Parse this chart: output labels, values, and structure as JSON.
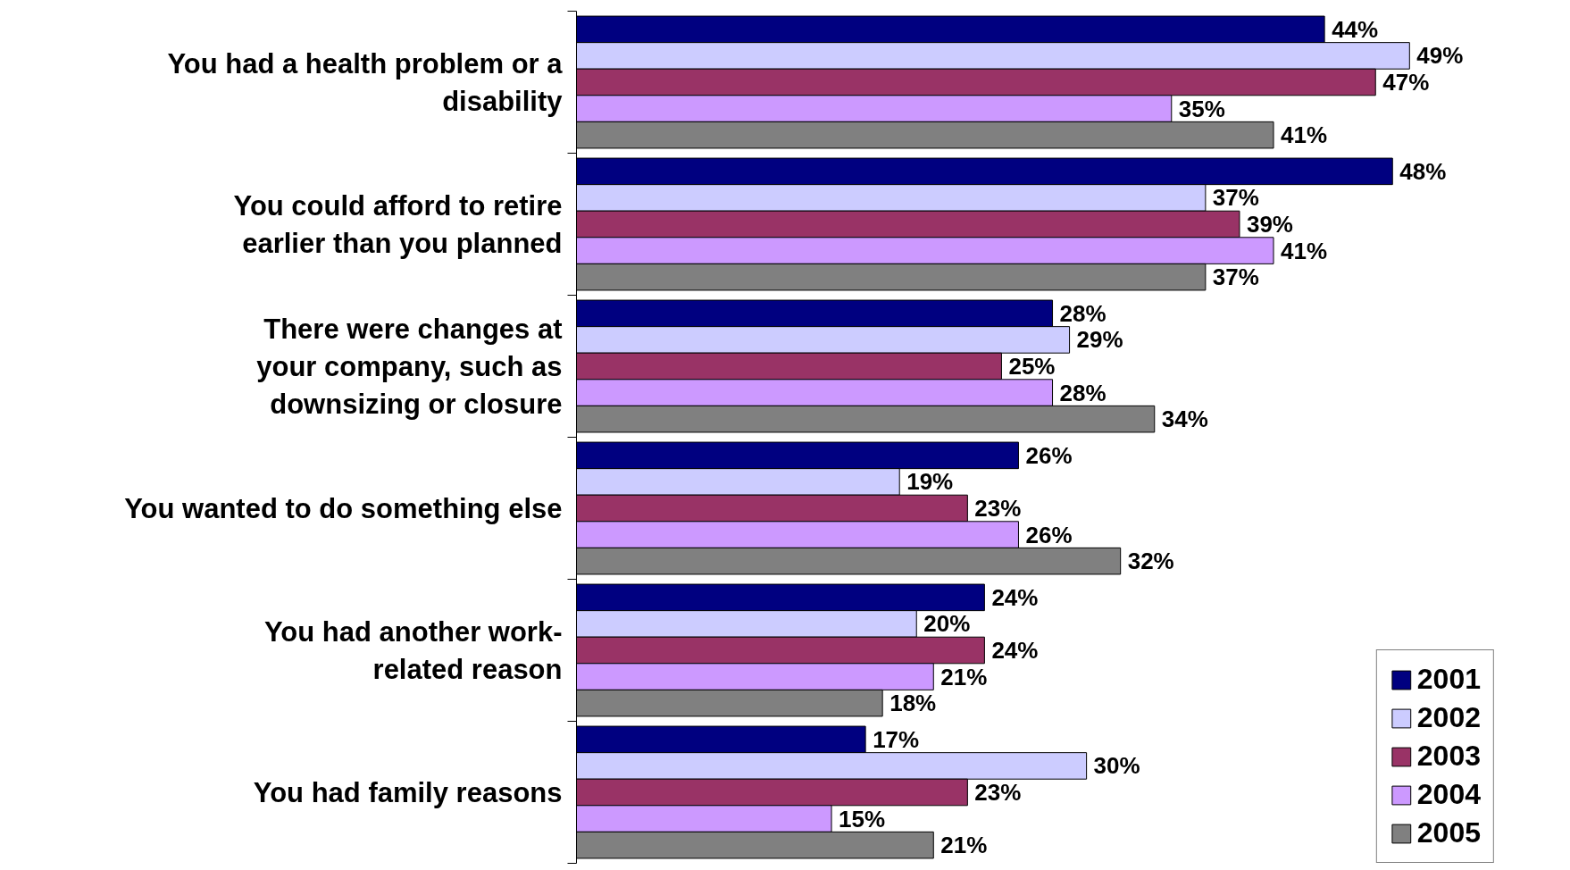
{
  "chart_data": {
    "type": "bar",
    "orientation": "horizontal",
    "categories": [
      "You had a health problem or a\ndisability",
      "You could afford to retire\nearlier than you planned",
      "There were changes at\nyour company, such as\ndownsizing or closure",
      "You wanted to do something else",
      "You had another work-\nrelated reason",
      "You had family reasons"
    ],
    "series": [
      {
        "name": "2001",
        "color": "#000080",
        "values": [
          44,
          48,
          28,
          26,
          24,
          17
        ],
        "value_labels": [
          "44%",
          "48%",
          "28%",
          "26%",
          "24%",
          "17%"
        ]
      },
      {
        "name": "2002",
        "color": "#ccccff",
        "values": [
          49,
          37,
          29,
          19,
          20,
          30
        ],
        "value_labels": [
          "49%",
          "37%",
          "29%",
          "19%",
          "20%",
          "30%"
        ]
      },
      {
        "name": "2003",
        "color": "#993366",
        "values": [
          47,
          39,
          25,
          23,
          24,
          23
        ],
        "value_labels": [
          "47%",
          "39%",
          "25%",
          "23%",
          "24%",
          "23%"
        ]
      },
      {
        "name": "2004",
        "color": "#cc99ff",
        "values": [
          35,
          41,
          28,
          26,
          21,
          15
        ],
        "value_labels": [
          "35%",
          "41%",
          "28%",
          "26%",
          "21%",
          "15%"
        ]
      },
      {
        "name": "2005",
        "color": "#808080",
        "values": [
          41,
          37,
          34,
          32,
          18,
          21
        ],
        "value_labels": [
          "41%",
          "37%",
          "34%",
          "32%",
          "18%",
          "21%"
        ]
      }
    ],
    "xlim": [
      0,
      54
    ],
    "tick_labels": "y",
    "grid": false,
    "legend": "bottom right"
  }
}
